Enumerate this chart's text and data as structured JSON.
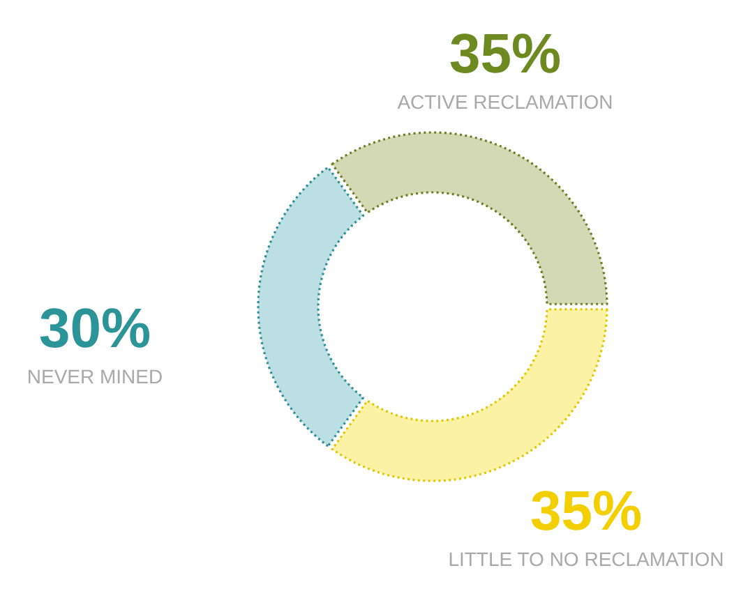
{
  "chart_data": {
    "type": "donut",
    "categories": [
      "ACTIVE RECLAMATION",
      "LITTLE TO NO RECLAMATION",
      "NEVER MINED"
    ],
    "values": [
      35,
      35,
      30
    ],
    "colors": [
      "#d3d9b5",
      "#fcf2a6",
      "#bbdfe2"
    ],
    "value_labels": [
      "35%",
      "35%",
      "30%"
    ]
  }
}
